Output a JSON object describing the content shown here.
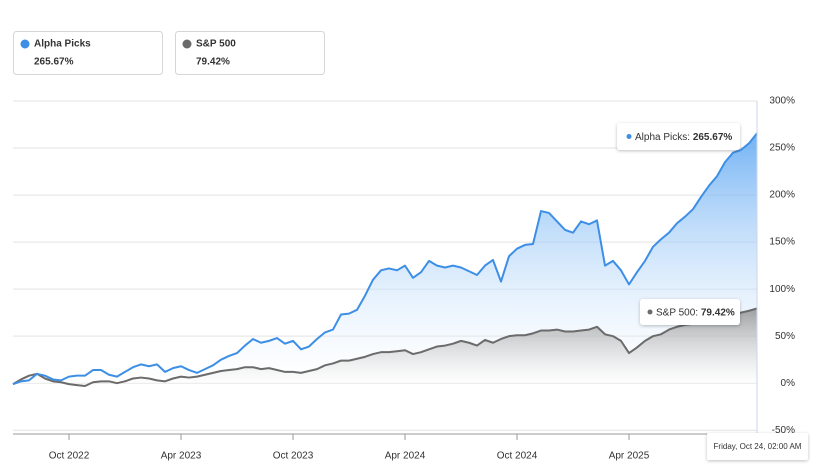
{
  "chart_data": {
    "type": "area",
    "categories": [
      null,
      null,
      null,
      null,
      null,
      null,
      null,
      "Oct 2022",
      null,
      null,
      null,
      null,
      null,
      null,
      null,
      null,
      null,
      null,
      null,
      null,
      null,
      "Apr 2023",
      null,
      null,
      null,
      null,
      null,
      null,
      null,
      null,
      null,
      null,
      null,
      null,
      null,
      "Oct 2023",
      null,
      null,
      null,
      null,
      null,
      null,
      null,
      null,
      null,
      null,
      null,
      null,
      null,
      "Apr 2024",
      null,
      null,
      null,
      null,
      null,
      null,
      null,
      null,
      null,
      null,
      null,
      null,
      null,
      "Oct 2024",
      null,
      null,
      null,
      null,
      null,
      null,
      null,
      null,
      null,
      null,
      null,
      null,
      null,
      "Apr 2025",
      null,
      null,
      null,
      null,
      null,
      null,
      null,
      null,
      null,
      null,
      null,
      null,
      null,
      null,
      null,
      null
    ],
    "series": [
      {
        "name": "Alpha Picks",
        "color": "#3d8fe6",
        "values": [
          -1,
          2,
          3,
          10,
          8,
          4,
          3,
          7,
          8,
          8,
          14,
          14,
          9,
          7,
          12,
          17,
          20,
          18,
          20,
          12,
          16,
          18,
          14,
          11,
          15,
          19,
          25,
          29,
          32,
          40,
          47,
          43,
          45,
          48,
          42,
          45,
          36,
          39,
          47,
          54,
          57,
          73,
          74,
          78,
          93,
          110,
          120,
          122,
          120,
          125,
          112,
          118,
          130,
          125,
          123,
          125,
          123,
          119,
          115,
          125,
          131,
          108,
          135,
          143,
          147,
          148,
          183,
          181,
          172,
          163,
          160,
          172,
          169,
          173,
          125,
          130,
          120,
          105,
          118,
          130,
          145,
          153,
          160,
          170,
          177,
          185,
          198,
          210,
          220,
          235,
          245,
          248,
          255,
          265.67
        ],
        "value_labels": [
          null,
          null,
          null,
          null,
          null,
          null,
          null,
          null,
          null,
          null,
          null,
          null,
          null,
          null,
          null,
          null,
          null,
          null,
          null,
          null,
          null,
          null,
          null,
          null,
          null,
          null,
          null,
          null,
          null,
          null,
          null,
          null,
          null,
          null,
          null,
          null,
          null,
          null,
          null,
          null,
          null,
          null,
          null,
          null,
          null,
          null,
          null,
          null,
          null,
          null,
          null,
          null,
          null,
          null,
          null,
          null,
          null,
          null,
          null,
          null,
          null,
          null,
          null,
          null,
          null,
          null,
          null,
          null,
          null,
          null,
          null,
          null,
          null,
          null,
          null,
          null,
          null,
          null,
          null,
          null,
          null,
          null,
          null,
          null,
          null,
          null,
          null,
          null,
          null,
          null,
          null,
          null,
          null,
          "265.67%"
        ]
      },
      {
        "name": "S&P 500",
        "color": "#6b6b6b",
        "values": [
          -1,
          4,
          8,
          10,
          5,
          2,
          1,
          -1,
          -2,
          -3,
          1,
          2,
          2,
          0,
          2,
          5,
          6,
          5,
          3,
          2,
          5,
          7,
          6,
          7,
          9,
          11,
          13,
          14,
          15,
          17,
          17,
          15,
          16,
          14,
          12,
          12,
          11,
          13,
          15,
          19,
          21,
          24,
          24,
          26,
          28,
          31,
          33,
          33,
          34,
          35,
          31,
          33,
          36,
          39,
          40,
          42,
          45,
          43,
          40,
          46,
          43,
          47,
          50,
          51,
          51,
          53,
          56,
          56,
          57,
          55,
          55,
          56,
          57,
          60,
          52,
          50,
          45,
          32,
          38,
          45,
          50,
          52,
          57,
          60,
          62,
          63,
          65,
          67,
          69,
          71,
          73,
          75,
          77,
          79.42
        ],
        "value_labels": [
          null,
          null,
          null,
          null,
          null,
          null,
          null,
          null,
          null,
          null,
          null,
          null,
          null,
          null,
          null,
          null,
          null,
          null,
          null,
          null,
          null,
          null,
          null,
          null,
          null,
          null,
          null,
          null,
          null,
          null,
          null,
          null,
          null,
          null,
          null,
          null,
          null,
          null,
          null,
          null,
          null,
          null,
          null,
          null,
          null,
          null,
          null,
          null,
          null,
          null,
          null,
          null,
          null,
          null,
          null,
          null,
          null,
          null,
          null,
          null,
          null,
          null,
          null,
          null,
          null,
          null,
          null,
          null,
          null,
          null,
          null,
          null,
          null,
          null,
          null,
          null,
          null,
          null,
          null,
          null,
          null,
          null,
          null,
          null,
          null,
          null,
          null,
          null,
          null,
          null,
          null,
          null,
          null,
          "79.42%"
        ]
      }
    ],
    "ylim": [
      -54,
      300
    ],
    "yticks": [
      {
        "value": -50,
        "label": "-50%"
      },
      {
        "value": 0,
        "label": "0%"
      },
      {
        "value": 50,
        "label": "50%"
      },
      {
        "value": 100,
        "label": "100%"
      },
      {
        "value": 150,
        "label": "150%"
      },
      {
        "value": 200,
        "label": "200%"
      },
      {
        "value": 250,
        "label": "250%"
      },
      {
        "value": 300,
        "label": "300%"
      }
    ],
    "grid": true,
    "tooltips": [
      {
        "label": "Alpha Picks:"
      },
      {
        "label": "S&P 500:"
      }
    ],
    "crosshair_label": "Friday, Oct 24, 02:00 AM"
  }
}
